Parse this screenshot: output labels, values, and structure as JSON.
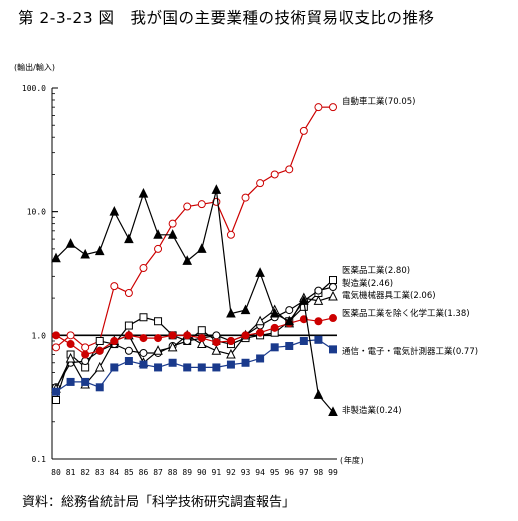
{
  "title": "第 2-3-23 図　我が国の主要業種の技術貿易収支比の推移",
  "unit_label": "(輸出/輸入)",
  "source": "資料：総務省統計局「科学技術研究調査報告」",
  "chart_data": {
    "type": "line",
    "y_scale": "log",
    "ylim": [
      0.1,
      100
    ],
    "yticks": [
      "100.0",
      "10.0",
      "1.0",
      "0.1"
    ],
    "reference_line": 1.0,
    "x_unit_label": "(年度)",
    "categories": [
      "80",
      "81",
      "82",
      "83",
      "84",
      "85",
      "86",
      "87",
      "88",
      "89",
      "90",
      "91",
      "92",
      "93",
      "94",
      "95",
      "96",
      "97",
      "98",
      "99"
    ],
    "series": [
      {
        "name": "自動車工業(70.05)",
        "color": "#cc0000",
        "marker": "circle-open",
        "values": [
          0.8,
          1.0,
          0.8,
          0.9,
          2.5,
          2.2,
          3.5,
          5.0,
          8.0,
          11.0,
          11.5,
          12.0,
          6.5,
          13.0,
          17.0,
          20.0,
          22.0,
          45.0,
          70.0,
          70.05
        ]
      },
      {
        "name": "医薬品工業(2.80)",
        "color": "#000000",
        "marker": "square-open",
        "values": [
          0.3,
          0.7,
          0.55,
          0.9,
          0.85,
          1.2,
          1.4,
          1.3,
          1.0,
          0.9,
          1.1,
          0.9,
          0.85,
          0.95,
          1.0,
          1.05,
          1.3,
          1.7,
          2.2,
          2.8
        ]
      },
      {
        "name": "製造業(2.46)",
        "color": "#000000",
        "marker": "circle-open",
        "values": [
          0.38,
          0.6,
          0.62,
          0.75,
          0.85,
          0.75,
          0.72,
          0.72,
          0.82,
          0.9,
          0.95,
          1.0,
          0.9,
          1.0,
          1.2,
          1.4,
          1.6,
          1.9,
          2.3,
          2.46
        ]
      },
      {
        "name": "電気機械器具工業(2.06)",
        "color": "#000000",
        "marker": "triangle-open",
        "values": [
          0.37,
          0.65,
          0.4,
          0.55,
          0.9,
          1.0,
          0.6,
          0.75,
          0.8,
          1.0,
          0.85,
          0.75,
          0.7,
          1.0,
          1.3,
          1.6,
          1.25,
          2.0,
          1.9,
          2.06
        ]
      },
      {
        "name": "医薬品工業を除く化学工業(1.38)",
        "color": "#cc0000",
        "marker": "circle-filled",
        "values": [
          1.0,
          0.85,
          0.7,
          0.75,
          0.9,
          1.0,
          0.95,
          0.95,
          1.0,
          1.0,
          0.95,
          0.88,
          0.9,
          1.0,
          1.05,
          1.15,
          1.25,
          1.35,
          1.3,
          1.38
        ]
      },
      {
        "name": "通信・電子・電気計測器工業(0.77)",
        "color": "#1a3a8c",
        "marker": "square-filled",
        "values": [
          0.35,
          0.42,
          0.42,
          0.38,
          0.55,
          0.62,
          0.58,
          0.55,
          0.6,
          0.55,
          0.55,
          0.55,
          0.58,
          0.6,
          0.65,
          0.8,
          0.82,
          0.9,
          0.92,
          0.77
        ]
      },
      {
        "name": "非製造業(0.24)",
        "color": "#000000",
        "marker": "triangle-filled",
        "values": [
          4.2,
          5.5,
          4.5,
          4.8,
          10.0,
          6.0,
          14.0,
          6.5,
          6.5,
          4.0,
          5.0,
          15.0,
          1.5,
          1.6,
          3.2,
          1.5,
          1.3,
          1.9,
          0.33,
          0.24
        ]
      }
    ]
  }
}
